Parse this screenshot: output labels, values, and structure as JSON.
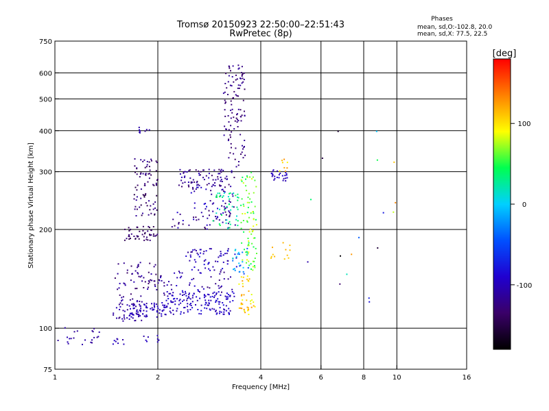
{
  "chart_data": {
    "type": "scatter",
    "title": "Tromsø 20150923 22:50:00–22:51:43",
    "subtitle": "RwPretec (8p)",
    "xlabel": "Frequency [MHz]",
    "ylabel": "Stationary phase Virtual Height [km]",
    "xscale": "log",
    "yscale": "log",
    "xlim": [
      1,
      16
    ],
    "ylim": [
      75,
      750
    ],
    "x_ticks": [
      1,
      2,
      4,
      6,
      8,
      10,
      16
    ],
    "x_tick_labels": [
      "1",
      "2",
      "4",
      "6",
      "8",
      "10",
      "16"
    ],
    "x_grid": [
      2,
      4,
      6,
      8,
      10
    ],
    "y_ticks": [
      75,
      100,
      200,
      300,
      400,
      500,
      600,
      750
    ],
    "y_tick_labels": [
      "75",
      "100",
      "200",
      "300",
      "400",
      "500",
      "600",
      "750"
    ],
    "y_grid": [
      100,
      200,
      300,
      400,
      500,
      600
    ],
    "grid": true,
    "legend": {
      "title": "Phases",
      "lines": [
        "mean, sd,O:-102.8, 20.0",
        "mean, sd,X:  77.5, 22.5"
      ],
      "placement": "top-right"
    },
    "colorbar": {
      "label": "[deg]",
      "range": [
        -180,
        180
      ],
      "ticks": [
        100,
        0,
        -100
      ],
      "tick_labels": [
        "100",
        "0",
        "-100"
      ],
      "colormap": "rainbow",
      "stops": [
        "#000000",
        "#3a0068",
        "#2000d0",
        "#0050ff",
        "#00d0ff",
        "#00ff50",
        "#ffff00",
        "#ff8000",
        "#ff0000"
      ]
    },
    "clusters": [
      {
        "x": [
          1.02,
          1.35
        ],
        "y": [
          88,
          102
        ],
        "phase": [
          -120,
          -100
        ],
        "n": 22
      },
      {
        "x": [
          1.4,
          1.6
        ],
        "y": [
          88,
          95
        ],
        "phase": [
          -110,
          -90
        ],
        "n": 8
      },
      {
        "x": [
          1.8,
          2.05
        ],
        "y": [
          88,
          95
        ],
        "phase": [
          -110,
          -90
        ],
        "n": 8
      },
      {
        "x": [
          1.48,
          1.8
        ],
        "y": [
          105,
          125
        ],
        "phase": [
          -130,
          -100
        ],
        "n": 50
      },
      {
        "x": [
          1.65,
          2.1
        ],
        "y": [
          108,
          120
        ],
        "phase": [
          -110,
          -90
        ],
        "n": 70
      },
      {
        "x": [
          2.1,
          3.35
        ],
        "y": [
          110,
          130
        ],
        "phase": [
          -110,
          -80
        ],
        "n": 150
      },
      {
        "x": [
          1.5,
          2.0
        ],
        "y": [
          125,
          160
        ],
        "phase": [
          -140,
          -100
        ],
        "n": 55
      },
      {
        "x": [
          2.0,
          3.35
        ],
        "y": [
          125,
          150
        ],
        "phase": [
          -130,
          -90
        ],
        "n": 60
      },
      {
        "x": [
          2.4,
          3.4
        ],
        "y": [
          150,
          175
        ],
        "phase": [
          -120,
          -80
        ],
        "n": 60
      },
      {
        "x": [
          1.6,
          2.0
        ],
        "y": [
          185,
          205
        ],
        "phase": [
          -150,
          -120
        ],
        "n": 50
      },
      {
        "x": [
          1.7,
          2.0
        ],
        "y": [
          220,
          330
        ],
        "phase": [
          -150,
          -110
        ],
        "n": 80
      },
      {
        "x": [
          2.2,
          3.4
        ],
        "y": [
          200,
          230
        ],
        "phase": [
          -140,
          -90
        ],
        "n": 50
      },
      {
        "x": [
          2.3,
          3.35
        ],
        "y": [
          270,
          305
        ],
        "phase": [
          -140,
          -100
        ],
        "n": 80
      },
      {
        "x": [
          2.5,
          3.35
        ],
        "y": [
          230,
          270
        ],
        "phase": [
          -130,
          -80
        ],
        "n": 40
      },
      {
        "x": [
          3.1,
          3.6
        ],
        "y": [
          310,
          640
        ],
        "phase": [
          -140,
          -110
        ],
        "n": 110
      },
      {
        "x": [
          2.9,
          3.45
        ],
        "y": [
          200,
          260
        ],
        "phase": [
          10,
          50
        ],
        "n": 45
      },
      {
        "x": [
          3.5,
          3.9
        ],
        "y": [
          150,
          300
        ],
        "phase": [
          40,
          90
        ],
        "n": 85
      },
      {
        "x": [
          3.45,
          3.85
        ],
        "y": [
          110,
          145
        ],
        "phase": [
          80,
          130
        ],
        "n": 40
      },
      {
        "x": [
          3.3,
          3.7
        ],
        "y": [
          140,
          175
        ],
        "phase": [
          -60,
          20
        ],
        "n": 25
      },
      {
        "x": [
          4.3,
          4.8
        ],
        "y": [
          280,
          305
        ],
        "phase": [
          -110,
          -90
        ],
        "n": 25
      },
      {
        "x": [
          4.5,
          4.9
        ],
        "y": [
          300,
          330
        ],
        "phase": [
          90,
          130
        ],
        "n": 8
      },
      {
        "x": [
          4.2,
          4.9
        ],
        "y": [
          160,
          190
        ],
        "phase": [
          100,
          120
        ],
        "n": 12
      },
      {
        "x": [
          1.75,
          1.9
        ],
        "y": [
          385,
          410
        ],
        "phase": [
          -120,
          -100
        ],
        "n": 8
      },
      {
        "x": [
          5.0,
          10.0
        ],
        "y": [
          120,
          400
        ],
        "phase": [
          -180,
          180
        ],
        "n": 18
      }
    ]
  }
}
